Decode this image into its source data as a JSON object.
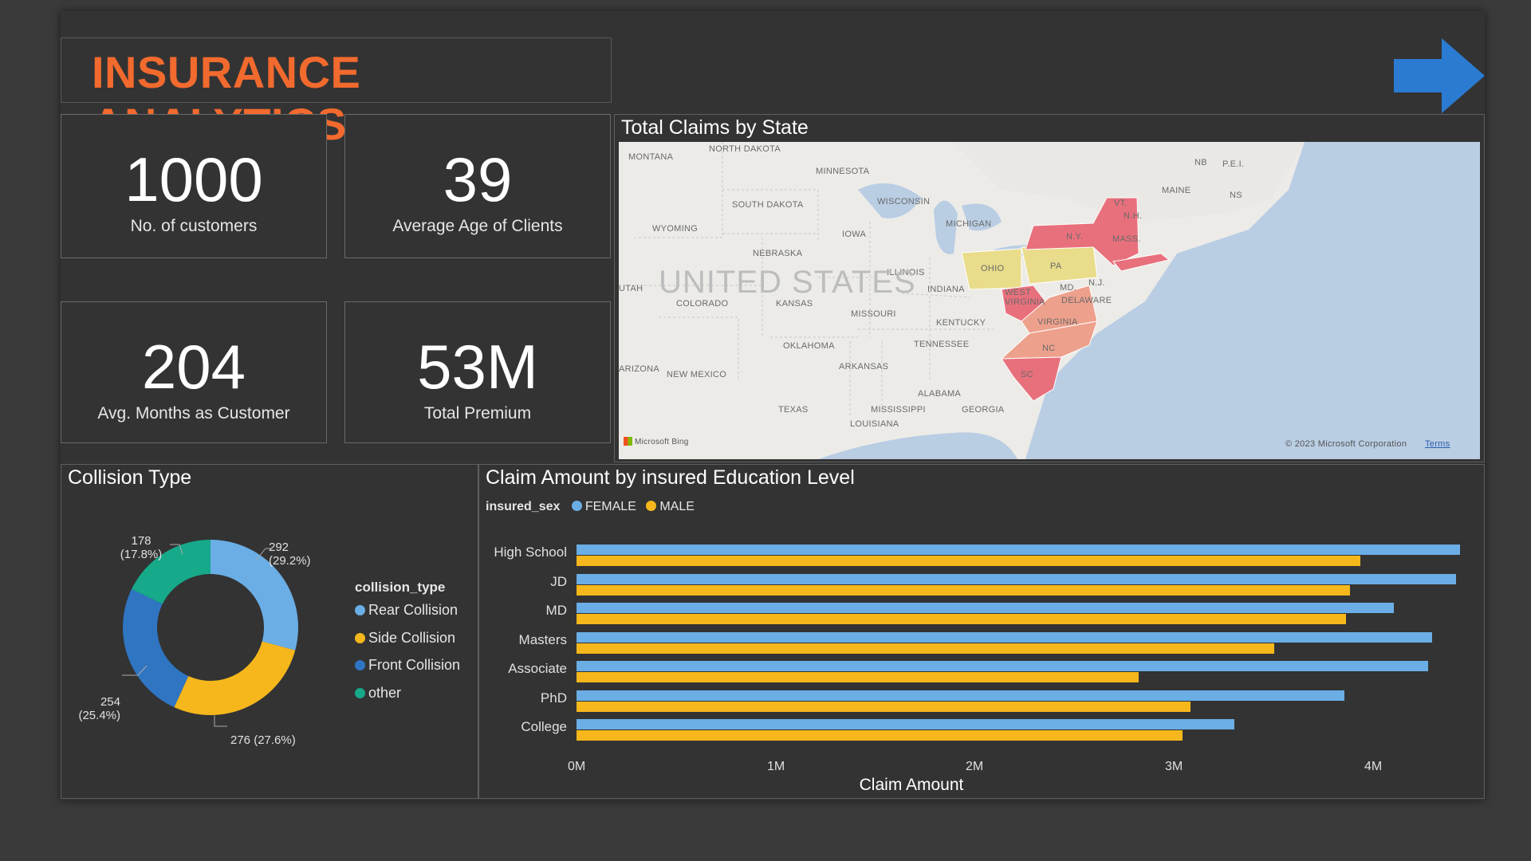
{
  "header": {
    "title": "INSURANCE ANALYTICS",
    "title_color": "#f26a2e",
    "nav_arrow_icon": "arrow-right-icon",
    "nav_arrow_color": "#2a7bd1"
  },
  "kpis": [
    {
      "value": "1000",
      "label": "No. of customers"
    },
    {
      "value": "39",
      "label": "Average Age of Clients"
    },
    {
      "value": "204",
      "label": "Avg. Months as Customer"
    },
    {
      "value": "53M",
      "label": "Total Premium"
    }
  ],
  "map": {
    "title": "Total Claims by State",
    "country_label": "UNITED STATES",
    "attribution": "Microsoft Bing",
    "copyright": "© 2023 Microsoft Corporation",
    "terms": "Terms",
    "state_labels": [
      "MONTANA",
      "NORTH DAKOTA",
      "MINNESOTA",
      "SOUTH DAKOTA",
      "WISCONSIN",
      "MICHIGAN",
      "WYOMING",
      "IOWA",
      "NEBRASKA",
      "ILLINOIS",
      "INDIANA",
      "OHIO",
      "PA",
      "N.Y.",
      "VT.",
      "N.H.",
      "MAINE",
      "MASS.",
      "NB",
      "P.E.I.",
      "NS",
      "UTAH",
      "COLORADO",
      "KANSAS",
      "MISSOURI",
      "KENTUCKY",
      "WEST VIRGINIA",
      "VIRGINIA",
      "MD.",
      "DELAWARE",
      "N.J.",
      "OKLAHOMA",
      "TENNESSEE",
      "NC",
      "ARIZONA",
      "NEW MEXICO",
      "ARKANSAS",
      "SC",
      "TEXAS",
      "MISSISSIPPI",
      "ALABAMA",
      "GEORGIA",
      "LOUISIANA"
    ],
    "highlight_colors": {
      "high": "#e8707c",
      "mid": "#eda08c",
      "low": "#e9dc8a"
    }
  },
  "collision": {
    "title": "Collision Type",
    "legend_title": "collision_type",
    "chart_data": {
      "type": "pie",
      "categories": [
        "Rear Collision",
        "Side Collision",
        "Front Collision",
        "other"
      ],
      "values": [
        292,
        276,
        254,
        178
      ],
      "labels": [
        "292\n(29.2%)",
        "276 (27.6%)",
        "254\n(25.4%)",
        "178\n(17.8%)"
      ],
      "colors": [
        "#6aaee5",
        "#f5b71b",
        "#2f75c2",
        "#16a98a"
      ]
    }
  },
  "claims": {
    "title": "Claim Amount by insured Education Level",
    "legend_title": "insured_sex",
    "legend": [
      {
        "name": "FEMALE",
        "color": "#6aaee5"
      },
      {
        "name": "MALE",
        "color": "#f5b71b"
      }
    ],
    "xlabel": "Claim Amount",
    "ticks": [
      "0M",
      "1M",
      "2M",
      "3M",
      "4M"
    ],
    "chart_data": {
      "type": "bar",
      "orientation": "horizontal",
      "categories": [
        "High School",
        "JD",
        "MD",
        "Masters",
        "Associate",
        "PhD",
        "College"
      ],
      "series": [
        {
          "name": "FEMALE",
          "values": [
            4.43,
            4.41,
            4.1,
            4.29,
            4.27,
            3.85,
            3.3
          ]
        },
        {
          "name": "MALE",
          "values": [
            3.93,
            3.88,
            3.86,
            3.5,
            2.82,
            3.08,
            3.04
          ]
        }
      ],
      "xlim": [
        0,
        4.5
      ],
      "unit": "M",
      "xlabel": "Claim Amount"
    }
  }
}
